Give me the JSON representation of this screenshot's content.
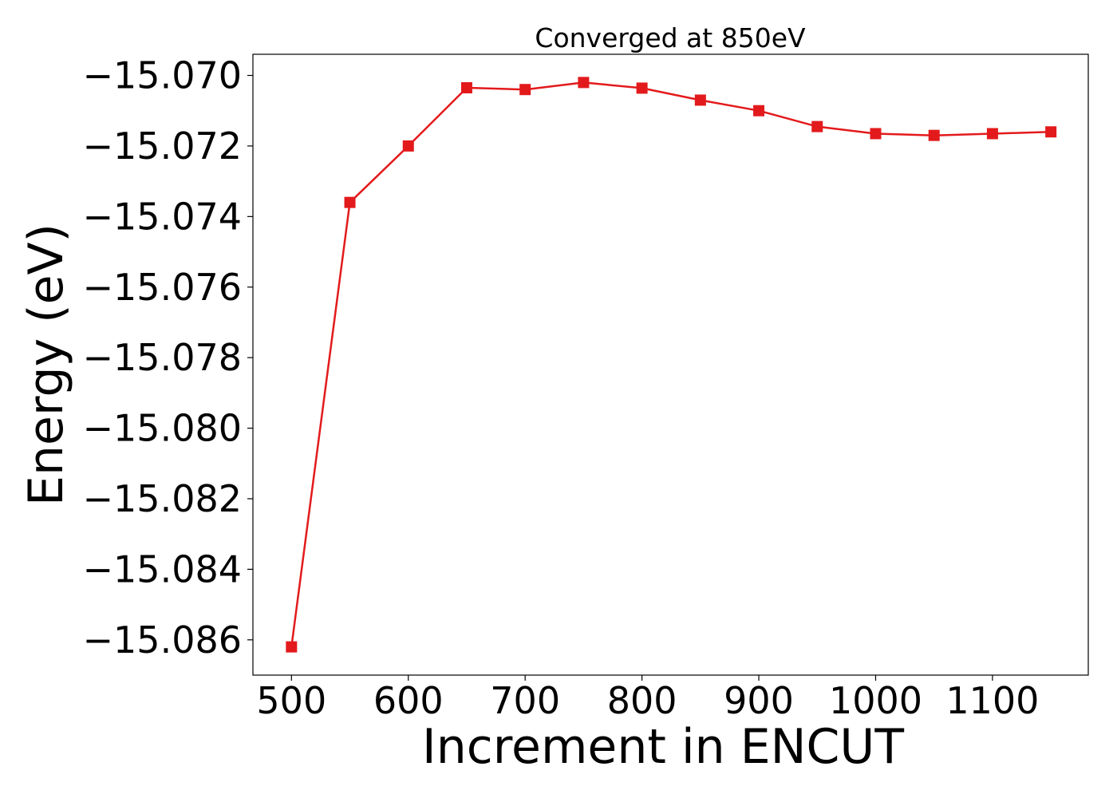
{
  "chart_data": {
    "type": "line",
    "title": "Converged at 850eV",
    "xlabel": "Increment in ENCUT",
    "ylabel": "Energy (eV)",
    "x": [
      500,
      550,
      600,
      650,
      700,
      750,
      800,
      850,
      900,
      950,
      1000,
      1050,
      1100,
      1150
    ],
    "series": [
      {
        "name": "",
        "color": "#e31a1c",
        "marker": "square",
        "values": [
          -15.0862,
          -15.0736,
          -15.072,
          -15.07035,
          -15.0704,
          -15.0702,
          -15.07036,
          -15.0707,
          -15.071,
          -15.07145,
          -15.07165,
          -15.0717,
          -15.07165,
          -15.0716
        ]
      }
    ],
    "xlim": [
      467,
      1182
    ],
    "ylim": [
      -15.087,
      -15.0694
    ],
    "x_ticks": [
      500,
      600,
      700,
      800,
      900,
      1000,
      1100
    ],
    "x_tick_labels": [
      "500",
      "600",
      "700",
      "800",
      "900",
      "1000",
      "1100"
    ],
    "y_ticks": [
      -15.086,
      -15.084,
      -15.082,
      -15.08,
      -15.078,
      -15.076,
      -15.074,
      -15.072,
      -15.07
    ],
    "y_tick_labels": [
      "−15.086",
      "−15.084",
      "−15.082",
      "−15.080",
      "−15.078",
      "−15.076",
      "−15.074",
      "−15.072",
      "−15.070"
    ],
    "grid": false,
    "legend": "none"
  }
}
